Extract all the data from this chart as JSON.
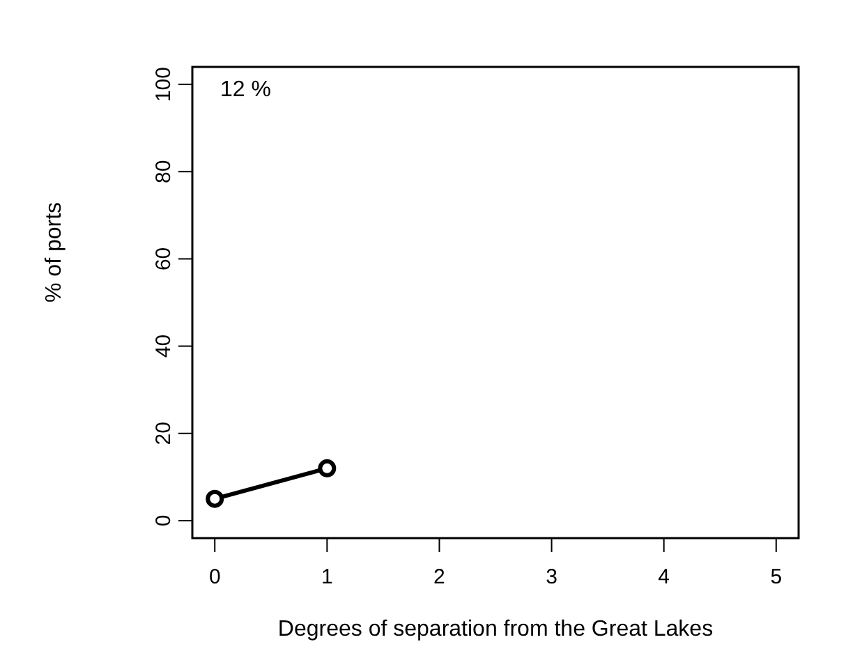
{
  "chart_data": {
    "type": "line",
    "xlabel": "Degrees of separation from the Great Lakes",
    "ylabel": "% of ports",
    "annotations": [
      "12 %"
    ],
    "x": [
      0,
      1
    ],
    "series": [
      {
        "color": "#000000",
        "values": [
          5,
          12
        ]
      }
    ],
    "xlim": [
      -0.2,
      5.2
    ],
    "xticks": [
      0,
      1,
      2,
      3,
      4,
      5
    ],
    "ylim": [
      -4,
      104
    ],
    "yticks": [
      0,
      20,
      40,
      60,
      80,
      100
    ],
    "grid": false,
    "legend": false,
    "marker": "circle",
    "line_style": "solid"
  }
}
